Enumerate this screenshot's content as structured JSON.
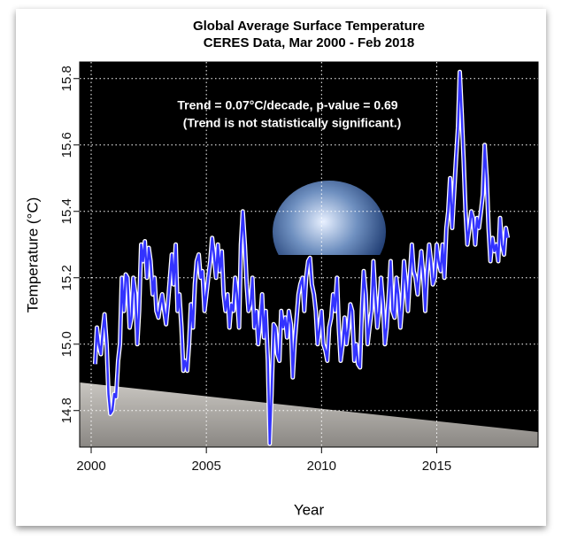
{
  "chart_data": {
    "type": "line",
    "title": "Global Average Surface Temperature",
    "subtitle": "CERES Data, Mar 2000 - Feb 2018",
    "annotation": "Trend = 0.07°C/decade, p-value = 0.69",
    "annotation_note": "(Trend is not statistically significant.)",
    "xlabel": "Year",
    "ylabel": "Temperature (°C)",
    "xlim": [
      1999.5,
      2019.4
    ],
    "ylim": [
      14.69,
      15.85
    ],
    "xticks": [
      2000,
      2005,
      2010,
      2015
    ],
    "yticks": [
      14.8,
      {
        "value": 15,
        "label": "15.0"
      },
      15.2,
      15.4,
      15.6,
      15.8
    ],
    "grid": true,
    "x": [
      2000.17,
      2000.25,
      2000.33,
      2000.42,
      2000.5,
      2000.58,
      2000.67,
      2000.75,
      2000.83,
      2000.92,
      2001.0,
      2001.08,
      2001.17,
      2001.25,
      2001.33,
      2001.42,
      2001.5,
      2001.58,
      2001.67,
      2001.75,
      2001.83,
      2001.92,
      2002.0,
      2002.08,
      2002.17,
      2002.25,
      2002.33,
      2002.42,
      2002.5,
      2002.58,
      2002.67,
      2002.75,
      2002.83,
      2002.92,
      2003.0,
      2003.08,
      2003.17,
      2003.25,
      2003.33,
      2003.42,
      2003.5,
      2003.58,
      2003.67,
      2003.75,
      2003.83,
      2003.92,
      2004.0,
      2004.08,
      2004.17,
      2004.25,
      2004.33,
      2004.42,
      2004.5,
      2004.58,
      2004.67,
      2004.75,
      2004.83,
      2004.92,
      2005.0,
      2005.08,
      2005.17,
      2005.25,
      2005.33,
      2005.42,
      2005.5,
      2005.58,
      2005.67,
      2005.75,
      2005.83,
      2005.92,
      2006.0,
      2006.08,
      2006.17,
      2006.25,
      2006.33,
      2006.42,
      2006.5,
      2006.58,
      2006.67,
      2006.75,
      2006.83,
      2006.92,
      2007.0,
      2007.08,
      2007.17,
      2007.25,
      2007.33,
      2007.42,
      2007.5,
      2007.58,
      2007.67,
      2007.75,
      2007.83,
      2007.92,
      2008.0,
      2008.08,
      2008.17,
      2008.25,
      2008.33,
      2008.42,
      2008.5,
      2008.58,
      2008.67,
      2008.75,
      2008.83,
      2008.92,
      2009.0,
      2009.08,
      2009.17,
      2009.25,
      2009.33,
      2009.42,
      2009.5,
      2009.58,
      2009.67,
      2009.75,
      2009.83,
      2009.92,
      2010.0,
      2010.08,
      2010.17,
      2010.25,
      2010.33,
      2010.42,
      2010.5,
      2010.58,
      2010.67,
      2010.75,
      2010.83,
      2010.92,
      2011.0,
      2011.08,
      2011.17,
      2011.25,
      2011.33,
      2011.42,
      2011.5,
      2011.58,
      2011.67,
      2011.75,
      2011.83,
      2011.92,
      2012.0,
      2012.08,
      2012.17,
      2012.25,
      2012.33,
      2012.42,
      2012.5,
      2012.58,
      2012.67,
      2012.75,
      2012.83,
      2012.92,
      2013.0,
      2013.08,
      2013.17,
      2013.25,
      2013.33,
      2013.42,
      2013.5,
      2013.58,
      2013.67,
      2013.75,
      2013.83,
      2013.92,
      2014.0,
      2014.08,
      2014.17,
      2014.25,
      2014.33,
      2014.42,
      2014.5,
      2014.58,
      2014.67,
      2014.75,
      2014.83,
      2014.92,
      2015.0,
      2015.08,
      2015.17,
      2015.25,
      2015.33,
      2015.42,
      2015.5,
      2015.58,
      2015.67,
      2015.75,
      2015.83,
      2015.92,
      2016.0,
      2016.08,
      2016.17,
      2016.25,
      2016.33,
      2016.42,
      2016.5,
      2016.58,
      2016.67,
      2016.75,
      2016.83,
      2016.92,
      2017.0,
      2017.08,
      2017.17,
      2017.25,
      2017.33,
      2017.42,
      2017.5,
      2017.58,
      2017.67,
      2017.75,
      2017.83,
      2017.92,
      2018.0,
      2018.08
    ],
    "series": [
      {
        "color": "#3333ff",
        "values": [
          14.94,
          15.05,
          15.0,
          14.97,
          15.04,
          15.09,
          15.0,
          14.85,
          14.79,
          14.8,
          14.85,
          14.84,
          14.95,
          15.0,
          15.2,
          15.1,
          15.21,
          15.2,
          15.05,
          15.08,
          15.2,
          15.15,
          15.0,
          15.1,
          15.3,
          15.25,
          15.31,
          15.2,
          15.29,
          15.25,
          15.15,
          15.2,
          15.1,
          15.08,
          15.12,
          15.15,
          15.1,
          15.06,
          15.12,
          15.2,
          15.27,
          15.18,
          15.3,
          15.1,
          15.15,
          15.05,
          14.92,
          14.95,
          14.92,
          15.0,
          15.12,
          15.05,
          15.18,
          15.25,
          15.27,
          15.2,
          15.22,
          15.1,
          15.15,
          15.2,
          15.25,
          15.32,
          15.27,
          15.2,
          15.3,
          15.22,
          15.28,
          15.15,
          15.1,
          15.15,
          15.05,
          15.12,
          15.1,
          15.2,
          15.15,
          15.05,
          15.3,
          15.4,
          15.3,
          15.18,
          15.1,
          15.12,
          15.2,
          15.05,
          15.1,
          15.0,
          15.06,
          15.15,
          15.02,
          15.1,
          14.95,
          14.7,
          14.85,
          15.06,
          15.05,
          14.97,
          14.95,
          15.1,
          15.05,
          15.08,
          15.02,
          15.1,
          15.06,
          14.9,
          15.0,
          15.08,
          15.15,
          15.18,
          15.2,
          15.1,
          15.2,
          15.25,
          15.26,
          15.18,
          15.15,
          15.1,
          15.0,
          15.05,
          15.1,
          15.0,
          14.98,
          14.95,
          15.05,
          15.08,
          15.15,
          15.1,
          15.2,
          15.05,
          14.95,
          15.0,
          15.08,
          15.0,
          15.05,
          15.12,
          15.1,
          14.95,
          15.0,
          14.94,
          14.93,
          15.1,
          15.22,
          15.15,
          15.0,
          15.05,
          15.1,
          15.25,
          15.15,
          15.05,
          15.1,
          15.2,
          15.12,
          15.0,
          15.05,
          15.15,
          15.25,
          15.1,
          15.08,
          15.2,
          15.15,
          15.05,
          15.12,
          15.25,
          15.18,
          15.1,
          15.2,
          15.3,
          15.22,
          15.2,
          15.15,
          15.22,
          15.28,
          15.2,
          15.1,
          15.22,
          15.3,
          15.25,
          15.18,
          15.2,
          15.3,
          15.25,
          15.22,
          15.3,
          15.2,
          15.35,
          15.4,
          15.5,
          15.35,
          15.45,
          15.55,
          15.65,
          15.82,
          15.7,
          15.55,
          15.4,
          15.3,
          15.35,
          15.4,
          15.38,
          15.3,
          15.38,
          15.35,
          15.4,
          15.45,
          15.6,
          15.5,
          15.35,
          15.25,
          15.32,
          15.28,
          15.3,
          15.25,
          15.38,
          15.3,
          15.27,
          15.35,
          15.32
        ]
      }
    ]
  }
}
